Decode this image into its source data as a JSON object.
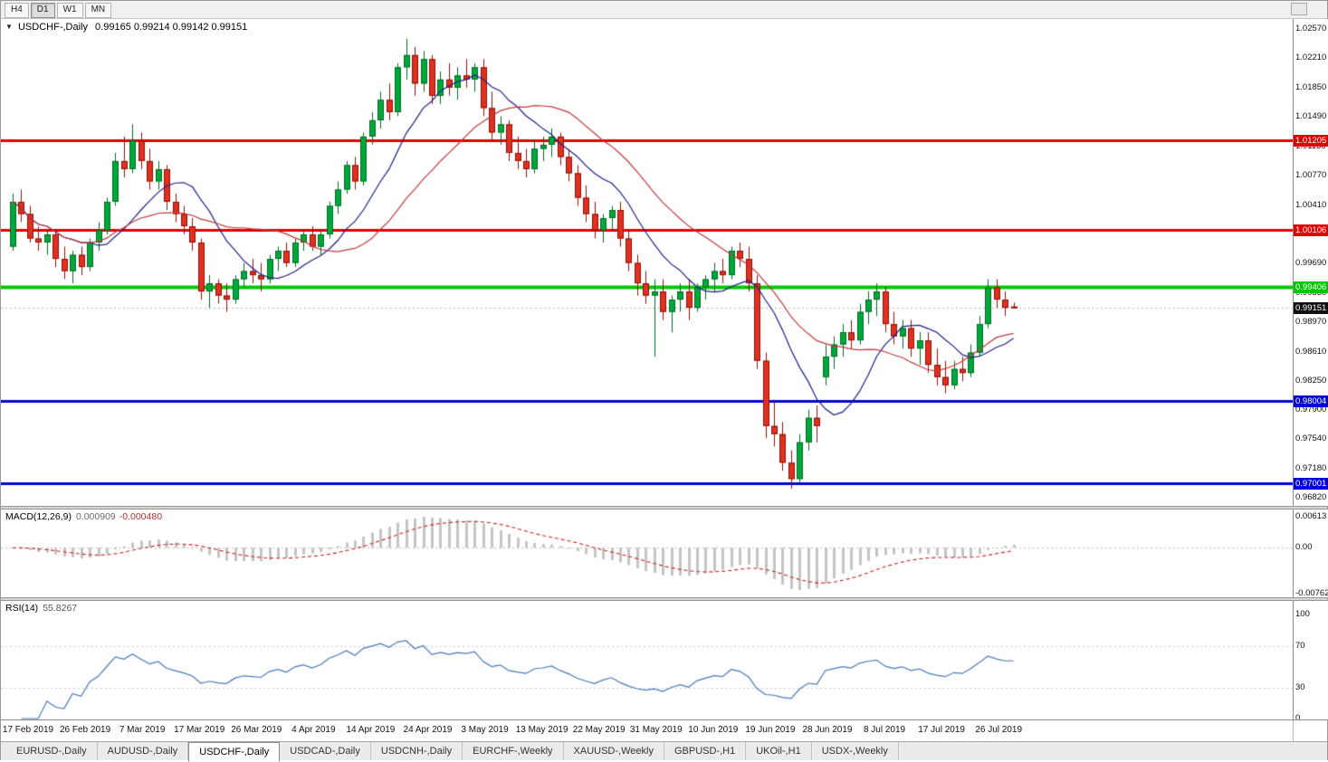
{
  "toolbar": {
    "timeframes": [
      {
        "label": "H4",
        "active": false
      },
      {
        "label": "D1",
        "active": true
      },
      {
        "label": "W1",
        "active": false
      },
      {
        "label": "MN",
        "active": false
      }
    ]
  },
  "chart": {
    "header_symbol": "USDCHF-,Daily",
    "header_ohlc": "0.99165 0.99214 0.99142 0.99151"
  },
  "price_axis": {
    "ticks": [
      "1.02570",
      "1.02210",
      "1.01850",
      "1.01490",
      "1.01130",
      "1.00770",
      "1.00410",
      "1.00050",
      "0.99690",
      "0.99330",
      "0.98970",
      "0.98610",
      "0.98250",
      "0.97900",
      "0.97540",
      "0.97180",
      "0.96820"
    ]
  },
  "macd_panel": {
    "title": "MACD(12,26,9)",
    "main_value": "0.000909",
    "signal_value": "-0.000480",
    "axis_max": "0.00613",
    "axis_zero": "0.00",
    "axis_min": "-0.00762"
  },
  "rsi_panel": {
    "title": "RSI(14)",
    "value": "55.8267",
    "axis": [
      "100",
      "70",
      "30",
      "0"
    ]
  },
  "tabs": [
    {
      "label": "EURUSD-,Daily",
      "active": false
    },
    {
      "label": "AUDUSD-,Daily",
      "active": false
    },
    {
      "label": "USDCHF-,Daily",
      "active": true
    },
    {
      "label": "USDCAD-,Daily",
      "active": false
    },
    {
      "label": "USDCNH-,Daily",
      "active": false
    },
    {
      "label": "EURCHF-,Weekly",
      "active": false
    },
    {
      "label": "XAUUSD-,Weekly",
      "active": false
    },
    {
      "label": "GBPUSD-,H1",
      "active": false
    },
    {
      "label": "UKOil-,H1",
      "active": false
    },
    {
      "label": "USDX-,Weekly",
      "active": false
    }
  ],
  "chart_data": {
    "type": "candlestick",
    "symbol": "USDCHF",
    "timeframe": "Daily",
    "current_ohlc": {
      "open": 0.99165,
      "high": 0.99214,
      "low": 0.99142,
      "close": 0.99151
    },
    "ylim": [
      0.9682,
      1.0257
    ],
    "x_labels": [
      "17 Feb 2019",
      "26 Feb 2019",
      "7 Mar 2019",
      "17 Mar 2019",
      "26 Mar 2019",
      "4 Apr 2019",
      "14 Apr 2019",
      "24 Apr 2019",
      "3 May 2019",
      "13 May 2019",
      "22 May 2019",
      "31 May 2019",
      "10 Jun 2019",
      "19 Jun 2019",
      "28 Jun 2019",
      "8 Jul 2019",
      "17 Jul 2019",
      "26 Jul 2019"
    ],
    "candle_colors": {
      "up": "#00a83c",
      "down": "#e03020"
    },
    "overlays": {
      "ma_fast": {
        "type": "sma",
        "period": 10,
        "color": "#20208c"
      },
      "ma_slow": {
        "type": "sma",
        "period": 21,
        "color": "#c03a3a"
      }
    },
    "annotations": {
      "hlines": [
        {
          "value": 1.01205,
          "color": "#e00000",
          "width": 3
        },
        {
          "value": 1.00106,
          "color": "#e00000",
          "width": 3
        },
        {
          "value": 0.99406,
          "color": "#00c800",
          "width": 4
        },
        {
          "value": 0.98004,
          "color": "#0000d8",
          "width": 3
        },
        {
          "value": 0.97001,
          "color": "#0000d8",
          "width": 3
        }
      ],
      "current_price": {
        "value": 0.99151,
        "badge_color": "#111111"
      }
    },
    "indicators": [
      {
        "name": "MACD",
        "params": [
          12,
          26,
          9
        ],
        "main": 0.000909,
        "signal": -0.00048,
        "axis": [
          0.00613,
          0.0,
          -0.00762
        ],
        "histogram_color": "#c4c4c4",
        "signal_color": "#cc2020"
      },
      {
        "name": "RSI",
        "params": [
          14
        ],
        "value": 55.8267,
        "color": "#4878b8",
        "levels": [
          70,
          30
        ],
        "axis": [
          100,
          70,
          30,
          0
        ]
      }
    ],
    "candles": [
      [
        0.999,
        1.0055,
        0.9985,
        1.0045
      ],
      [
        1.0045,
        1.006,
        1.002,
        1.003
      ],
      [
        1.003,
        1.004,
        0.9995,
        1.0
      ],
      [
        1.0,
        1.0015,
        0.9985,
        0.9995
      ],
      [
        0.9995,
        1.001,
        0.998,
        1.0005
      ],
      [
        1.0005,
        1.001,
        0.9965,
        0.9975
      ],
      [
        0.9975,
        0.999,
        0.995,
        0.996
      ],
      [
        0.996,
        0.9985,
        0.9945,
        0.998
      ],
      [
        0.998,
        0.999,
        0.9955,
        0.9965
      ],
      [
        0.9965,
        1.0,
        0.996,
        0.9995
      ],
      [
        0.9995,
        1.002,
        0.9985,
        1.001
      ],
      [
        1.001,
        1.005,
        1.0005,
        1.0045
      ],
      [
        1.0045,
        1.0105,
        1.004,
        1.0095
      ],
      [
        1.0095,
        1.0125,
        1.0075,
        1.0085
      ],
      [
        1.0085,
        1.014,
        1.008,
        1.012
      ],
      [
        1.012,
        1.013,
        1.0085,
        1.0095
      ],
      [
        1.0095,
        1.011,
        1.006,
        1.007
      ],
      [
        1.007,
        1.0095,
        1.006,
        1.0085
      ],
      [
        1.0085,
        1.009,
        1.0035,
        1.0045
      ],
      [
        1.0045,
        1.0055,
        1.002,
        1.003
      ],
      [
        1.003,
        1.004,
        1.0005,
        1.0015
      ],
      [
        1.0015,
        1.0025,
        0.9985,
        0.9995
      ],
      [
        0.9995,
        1.0,
        0.9925,
        0.9935
      ],
      [
        0.9935,
        0.9955,
        0.9915,
        0.9945
      ],
      [
        0.9945,
        0.995,
        0.992,
        0.993
      ],
      [
        0.993,
        0.9945,
        0.991,
        0.9925
      ],
      [
        0.9925,
        0.9955,
        0.992,
        0.995
      ],
      [
        0.995,
        0.997,
        0.994,
        0.996
      ],
      [
        0.996,
        0.9975,
        0.9945,
        0.9955
      ],
      [
        0.9955,
        0.997,
        0.9935,
        0.995
      ],
      [
        0.995,
        0.998,
        0.9945,
        0.9975
      ],
      [
        0.9975,
        0.999,
        0.996,
        0.9985
      ],
      [
        0.9985,
        0.9995,
        0.9965,
        0.997
      ],
      [
        0.997,
        1.0,
        0.9965,
        0.9995
      ],
      [
        0.9995,
        1.001,
        0.9985,
        1.0005
      ],
      [
        1.0005,
        1.0015,
        0.9985,
        0.999
      ],
      [
        0.999,
        1.001,
        0.998,
        1.0005
      ],
      [
        1.0005,
        1.0045,
        1.0,
        1.004
      ],
      [
        1.004,
        1.007,
        1.003,
        1.006
      ],
      [
        1.006,
        1.0095,
        1.0055,
        1.009
      ],
      [
        1.009,
        1.01,
        1.006,
        1.007
      ],
      [
        1.007,
        1.013,
        1.0065,
        1.0125
      ],
      [
        1.0125,
        1.0155,
        1.0115,
        1.0145
      ],
      [
        1.0145,
        1.018,
        1.0135,
        1.017
      ],
      [
        1.017,
        1.019,
        1.0145,
        1.0155
      ],
      [
        1.0155,
        1.0215,
        1.015,
        1.021
      ],
      [
        1.021,
        1.0245,
        1.0195,
        1.0225
      ],
      [
        1.0225,
        1.0235,
        1.0175,
        1.019
      ],
      [
        1.019,
        1.023,
        1.018,
        1.022
      ],
      [
        1.022,
        1.0225,
        1.0165,
        1.0175
      ],
      [
        1.0175,
        1.0205,
        1.0165,
        1.0195
      ],
      [
        1.0195,
        1.0215,
        1.0175,
        1.0185
      ],
      [
        1.0185,
        1.021,
        1.017,
        1.02
      ],
      [
        1.02,
        1.022,
        1.0185,
        1.0195
      ],
      [
        1.0195,
        1.0215,
        1.018,
        1.021
      ],
      [
        1.021,
        1.022,
        1.015,
        1.016
      ],
      [
        1.016,
        1.018,
        1.012,
        1.013
      ],
      [
        1.013,
        1.015,
        1.0115,
        1.014
      ],
      [
        1.014,
        1.0145,
        1.0095,
        1.0105
      ],
      [
        1.0105,
        1.0125,
        1.0085,
        1.0095
      ],
      [
        1.0095,
        1.011,
        1.0075,
        1.0085
      ],
      [
        1.0085,
        1.012,
        1.008,
        1.011
      ],
      [
        1.011,
        1.0125,
        1.0095,
        1.0115
      ],
      [
        1.0115,
        1.0135,
        1.01,
        1.0125
      ],
      [
        1.0125,
        1.013,
        1.009,
        1.01
      ],
      [
        1.01,
        1.011,
        1.007,
        1.008
      ],
      [
        1.008,
        1.009,
        1.004,
        1.005
      ],
      [
        1.005,
        1.0065,
        1.002,
        1.003
      ],
      [
        1.003,
        1.0045,
        1.0,
        1.001
      ],
      [
        1.001,
        1.003,
        0.9995,
        1.0025
      ],
      [
        1.0025,
        1.004,
        1.001,
        1.0035
      ],
      [
        1.0035,
        1.0045,
        0.999,
        1.0
      ],
      [
        1.0,
        1.001,
        0.996,
        0.997
      ],
      [
        0.997,
        0.998,
        0.993,
        0.9945
      ],
      [
        0.9945,
        0.996,
        0.992,
        0.993
      ],
      [
        0.993,
        0.995,
        0.9855,
        0.9935
      ],
      [
        0.9935,
        0.995,
        0.99,
        0.991
      ],
      [
        0.991,
        0.993,
        0.9885,
        0.9925
      ],
      [
        0.9925,
        0.9945,
        0.991,
        0.9935
      ],
      [
        0.9935,
        0.995,
        0.99,
        0.9915
      ],
      [
        0.9915,
        0.9945,
        0.991,
        0.994
      ],
      [
        0.994,
        0.9955,
        0.9925,
        0.995
      ],
      [
        0.995,
        0.997,
        0.9935,
        0.996
      ],
      [
        0.996,
        0.9975,
        0.9945,
        0.9955
      ],
      [
        0.9955,
        0.999,
        0.995,
        0.9985
      ],
      [
        0.9985,
        0.9995,
        0.9965,
        0.9975
      ],
      [
        0.9975,
        0.999,
        0.9935,
        0.9945
      ],
      [
        0.9945,
        0.9955,
        0.984,
        0.985
      ],
      [
        0.985,
        0.986,
        0.9755,
        0.977
      ],
      [
        0.977,
        0.98,
        0.9745,
        0.976
      ],
      [
        0.976,
        0.9775,
        0.9715,
        0.9725
      ],
      [
        0.9725,
        0.974,
        0.9693,
        0.9705
      ],
      [
        0.9705,
        0.976,
        0.97,
        0.975
      ],
      [
        0.975,
        0.979,
        0.974,
        0.978
      ],
      [
        0.978,
        0.9795,
        0.975,
        0.977
      ],
      [
        0.983,
        0.987,
        0.982,
        0.9855
      ],
      [
        0.9855,
        0.988,
        0.984,
        0.987
      ],
      [
        0.987,
        0.9895,
        0.9855,
        0.9885
      ],
      [
        0.9885,
        0.99,
        0.9865,
        0.9875
      ],
      [
        0.9875,
        0.992,
        0.987,
        0.991
      ],
      [
        0.991,
        0.9935,
        0.9895,
        0.9925
      ],
      [
        0.9925,
        0.9945,
        0.9905,
        0.9935
      ],
      [
        0.9935,
        0.994,
        0.9885,
        0.9895
      ],
      [
        0.9895,
        0.991,
        0.987,
        0.988
      ],
      [
        0.988,
        0.99,
        0.9865,
        0.989
      ],
      [
        0.989,
        0.99,
        0.9855,
        0.9865
      ],
      [
        0.9865,
        0.9885,
        0.9845,
        0.9875
      ],
      [
        0.9875,
        0.9885,
        0.9835,
        0.9845
      ],
      [
        0.9845,
        0.9865,
        0.982,
        0.983
      ],
      [
        0.983,
        0.985,
        0.981,
        0.982
      ],
      [
        0.982,
        0.985,
        0.9815,
        0.984
      ],
      [
        0.984,
        0.9855,
        0.9825,
        0.9835
      ],
      [
        0.9835,
        0.987,
        0.983,
        0.986
      ],
      [
        0.986,
        0.9905,
        0.9855,
        0.9895
      ],
      [
        0.9895,
        0.995,
        0.989,
        0.994
      ],
      [
        0.994,
        0.995,
        0.9915,
        0.9925
      ],
      [
        0.9925,
        0.9935,
        0.9905,
        0.9915
      ],
      [
        0.99165,
        0.99214,
        0.99142,
        0.99151
      ]
    ]
  }
}
